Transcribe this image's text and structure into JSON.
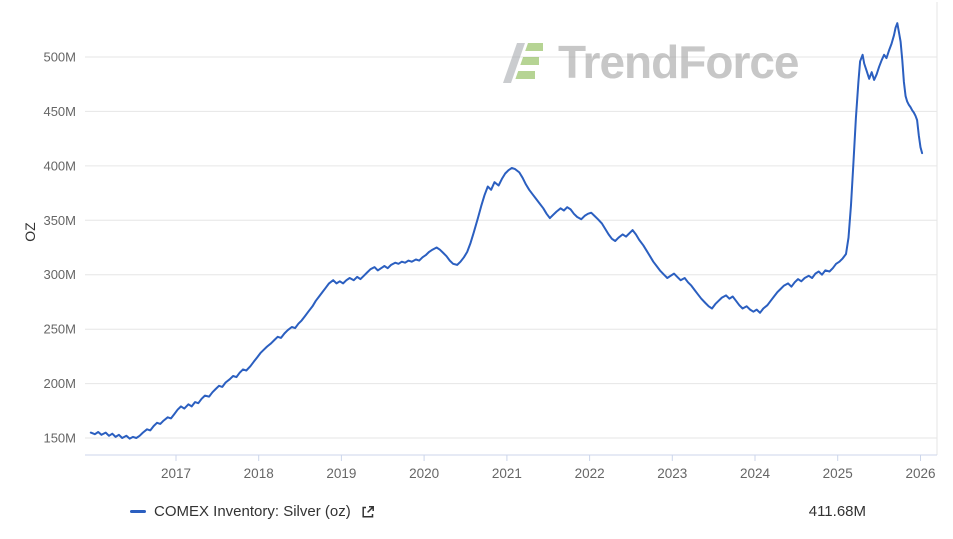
{
  "watermark": {
    "brand": "TrendForce"
  },
  "legend": {
    "label": "COMEX Inventory: Silver (oz)",
    "value": "411.68M"
  },
  "chart_data": {
    "type": "line",
    "title": "",
    "xlabel": "",
    "ylabel": "OZ",
    "grid": "horizontal",
    "legend_position": "bottom",
    "line_color": "#2b5fc0",
    "xlim": [
      2015.9,
      2026.2
    ],
    "ylim": [
      134.4,
      545
    ],
    "x_ticks": [
      {
        "value": 2017,
        "label": "2017"
      },
      {
        "value": 2018,
        "label": "2018"
      },
      {
        "value": 2019,
        "label": "2019"
      },
      {
        "value": 2020,
        "label": "2020"
      },
      {
        "value": 2021,
        "label": "2021"
      },
      {
        "value": 2022,
        "label": "2022"
      },
      {
        "value": 2023,
        "label": "2023"
      },
      {
        "value": 2024,
        "label": "2024"
      },
      {
        "value": 2025,
        "label": "2025"
      },
      {
        "value": 2026,
        "label": "2026"
      }
    ],
    "y_ticks": [
      {
        "value": 150,
        "label": "150M"
      },
      {
        "value": 200,
        "label": "200M"
      },
      {
        "value": 250,
        "label": "250M"
      },
      {
        "value": 300,
        "label": "300M"
      },
      {
        "value": 350,
        "label": "350M"
      },
      {
        "value": 400,
        "label": "400M"
      },
      {
        "value": 450,
        "label": "450M"
      },
      {
        "value": 500,
        "label": "500M"
      }
    ],
    "last_value_label": "411.68M",
    "series": [
      {
        "name": "COMEX Inventory: Silver (oz)",
        "color": "#2b5fc0",
        "points": [
          [
            2015.97,
            155
          ],
          [
            2016.02,
            153.5
          ],
          [
            2016.06,
            155.5
          ],
          [
            2016.1,
            153
          ],
          [
            2016.15,
            155
          ],
          [
            2016.19,
            152
          ],
          [
            2016.23,
            154
          ],
          [
            2016.27,
            151
          ],
          [
            2016.31,
            153
          ],
          [
            2016.35,
            150
          ],
          [
            2016.4,
            152
          ],
          [
            2016.44,
            149.5
          ],
          [
            2016.48,
            151
          ],
          [
            2016.52,
            150
          ],
          [
            2016.56,
            152
          ],
          [
            2016.6,
            155
          ],
          [
            2016.65,
            158
          ],
          [
            2016.69,
            157
          ],
          [
            2016.73,
            161
          ],
          [
            2016.77,
            164
          ],
          [
            2016.81,
            163
          ],
          [
            2016.85,
            166
          ],
          [
            2016.9,
            169
          ],
          [
            2016.94,
            168
          ],
          [
            2016.98,
            172
          ],
          [
            2017.02,
            176
          ],
          [
            2017.06,
            179
          ],
          [
            2017.1,
            177
          ],
          [
            2017.15,
            181
          ],
          [
            2017.19,
            179
          ],
          [
            2017.23,
            183
          ],
          [
            2017.27,
            182
          ],
          [
            2017.31,
            186
          ],
          [
            2017.35,
            189
          ],
          [
            2017.4,
            188
          ],
          [
            2017.44,
            192
          ],
          [
            2017.48,
            195
          ],
          [
            2017.52,
            198
          ],
          [
            2017.56,
            197
          ],
          [
            2017.6,
            201
          ],
          [
            2017.65,
            204
          ],
          [
            2017.69,
            207
          ],
          [
            2017.73,
            206
          ],
          [
            2017.77,
            210
          ],
          [
            2017.81,
            213
          ],
          [
            2017.85,
            212
          ],
          [
            2017.9,
            216
          ],
          [
            2017.94,
            220
          ],
          [
            2017.98,
            224
          ],
          [
            2018.02,
            228
          ],
          [
            2018.06,
            231
          ],
          [
            2018.1,
            234
          ],
          [
            2018.15,
            237
          ],
          [
            2018.19,
            240
          ],
          [
            2018.23,
            243
          ],
          [
            2018.27,
            242
          ],
          [
            2018.31,
            246
          ],
          [
            2018.35,
            249
          ],
          [
            2018.4,
            252
          ],
          [
            2018.44,
            251
          ],
          [
            2018.48,
            255
          ],
          [
            2018.52,
            258
          ],
          [
            2018.56,
            262
          ],
          [
            2018.6,
            266
          ],
          [
            2018.65,
            271
          ],
          [
            2018.69,
            276
          ],
          [
            2018.73,
            280
          ],
          [
            2018.77,
            284
          ],
          [
            2018.81,
            288
          ],
          [
            2018.85,
            292
          ],
          [
            2018.9,
            295
          ],
          [
            2018.94,
            292
          ],
          [
            2018.98,
            294
          ],
          [
            2019.02,
            292
          ],
          [
            2019.06,
            295
          ],
          [
            2019.1,
            297
          ],
          [
            2019.15,
            295
          ],
          [
            2019.19,
            298
          ],
          [
            2019.23,
            296
          ],
          [
            2019.27,
            299
          ],
          [
            2019.31,
            302
          ],
          [
            2019.35,
            305
          ],
          [
            2019.4,
            307
          ],
          [
            2019.44,
            304
          ],
          [
            2019.48,
            306
          ],
          [
            2019.52,
            308
          ],
          [
            2019.56,
            306
          ],
          [
            2019.6,
            309
          ],
          [
            2019.65,
            311
          ],
          [
            2019.69,
            310
          ],
          [
            2019.73,
            312
          ],
          [
            2019.77,
            311
          ],
          [
            2019.81,
            313
          ],
          [
            2019.85,
            312
          ],
          [
            2019.9,
            314
          ],
          [
            2019.94,
            313
          ],
          [
            2019.98,
            316
          ],
          [
            2020.02,
            318
          ],
          [
            2020.06,
            321
          ],
          [
            2020.1,
            323
          ],
          [
            2020.15,
            325
          ],
          [
            2020.19,
            323
          ],
          [
            2020.23,
            320
          ],
          [
            2020.27,
            317
          ],
          [
            2020.31,
            313
          ],
          [
            2020.35,
            310
          ],
          [
            2020.4,
            309
          ],
          [
            2020.44,
            312
          ],
          [
            2020.48,
            316
          ],
          [
            2020.52,
            321
          ],
          [
            2020.56,
            329
          ],
          [
            2020.6,
            339
          ],
          [
            2020.65,
            352
          ],
          [
            2020.69,
            363
          ],
          [
            2020.73,
            373
          ],
          [
            2020.77,
            381
          ],
          [
            2020.81,
            378
          ],
          [
            2020.85,
            385
          ],
          [
            2020.9,
            382
          ],
          [
            2020.94,
            388
          ],
          [
            2020.98,
            393
          ],
          [
            2021.02,
            396
          ],
          [
            2021.06,
            398
          ],
          [
            2021.1,
            397
          ],
          [
            2021.15,
            394
          ],
          [
            2021.19,
            389
          ],
          [
            2021.23,
            383
          ],
          [
            2021.27,
            378
          ],
          [
            2021.31,
            374
          ],
          [
            2021.35,
            370
          ],
          [
            2021.4,
            365
          ],
          [
            2021.44,
            361
          ],
          [
            2021.48,
            356
          ],
          [
            2021.52,
            352
          ],
          [
            2021.56,
            355
          ],
          [
            2021.6,
            358
          ],
          [
            2021.65,
            361
          ],
          [
            2021.69,
            359
          ],
          [
            2021.73,
            362
          ],
          [
            2021.77,
            360
          ],
          [
            2021.81,
            356
          ],
          [
            2021.85,
            353
          ],
          [
            2021.9,
            351
          ],
          [
            2021.94,
            354
          ],
          [
            2021.98,
            356
          ],
          [
            2022.02,
            357
          ],
          [
            2022.06,
            354
          ],
          [
            2022.1,
            351
          ],
          [
            2022.15,
            347
          ],
          [
            2022.19,
            342
          ],
          [
            2022.23,
            337
          ],
          [
            2022.27,
            333
          ],
          [
            2022.31,
            331
          ],
          [
            2022.35,
            334
          ],
          [
            2022.4,
            337
          ],
          [
            2022.44,
            335
          ],
          [
            2022.48,
            338
          ],
          [
            2022.52,
            341
          ],
          [
            2022.56,
            337
          ],
          [
            2022.6,
            332
          ],
          [
            2022.65,
            327
          ],
          [
            2022.69,
            322
          ],
          [
            2022.73,
            317
          ],
          [
            2022.77,
            312
          ],
          [
            2022.81,
            308
          ],
          [
            2022.85,
            304
          ],
          [
            2022.9,
            300
          ],
          [
            2022.94,
            297
          ],
          [
            2022.98,
            299
          ],
          [
            2023.02,
            301
          ],
          [
            2023.06,
            298
          ],
          [
            2023.1,
            295
          ],
          [
            2023.15,
            297
          ],
          [
            2023.19,
            293
          ],
          [
            2023.23,
            290
          ],
          [
            2023.27,
            286
          ],
          [
            2023.31,
            282
          ],
          [
            2023.35,
            278
          ],
          [
            2023.4,
            274
          ],
          [
            2023.44,
            271
          ],
          [
            2023.48,
            269
          ],
          [
            2023.52,
            273
          ],
          [
            2023.56,
            276
          ],
          [
            2023.6,
            279
          ],
          [
            2023.65,
            281
          ],
          [
            2023.69,
            278
          ],
          [
            2023.73,
            280
          ],
          [
            2023.77,
            276
          ],
          [
            2023.81,
            272
          ],
          [
            2023.85,
            269
          ],
          [
            2023.9,
            271
          ],
          [
            2023.94,
            268
          ],
          [
            2023.98,
            266
          ],
          [
            2024.02,
            268
          ],
          [
            2024.06,
            265
          ],
          [
            2024.1,
            269
          ],
          [
            2024.15,
            272
          ],
          [
            2024.19,
            276
          ],
          [
            2024.23,
            280
          ],
          [
            2024.27,
            284
          ],
          [
            2024.31,
            287
          ],
          [
            2024.35,
            290
          ],
          [
            2024.4,
            292
          ],
          [
            2024.44,
            289
          ],
          [
            2024.48,
            293
          ],
          [
            2024.52,
            296
          ],
          [
            2024.56,
            294
          ],
          [
            2024.6,
            297
          ],
          [
            2024.65,
            299
          ],
          [
            2024.69,
            297
          ],
          [
            2024.73,
            301
          ],
          [
            2024.77,
            303
          ],
          [
            2024.81,
            300
          ],
          [
            2024.85,
            304
          ],
          [
            2024.9,
            303
          ],
          [
            2024.94,
            306
          ],
          [
            2024.98,
            310
          ],
          [
            2025.02,
            312
          ],
          [
            2025.06,
            315
          ],
          [
            2025.1,
            319
          ],
          [
            2025.13,
            334
          ],
          [
            2025.16,
            364
          ],
          [
            2025.19,
            404
          ],
          [
            2025.22,
            444
          ],
          [
            2025.25,
            477
          ],
          [
            2025.27,
            496
          ],
          [
            2025.3,
            502
          ],
          [
            2025.32,
            494
          ],
          [
            2025.35,
            487
          ],
          [
            2025.38,
            480
          ],
          [
            2025.41,
            486
          ],
          [
            2025.44,
            479
          ],
          [
            2025.47,
            484
          ],
          [
            2025.5,
            491
          ],
          [
            2025.53,
            497
          ],
          [
            2025.56,
            502
          ],
          [
            2025.59,
            499
          ],
          [
            2025.62,
            506
          ],
          [
            2025.65,
            512
          ],
          [
            2025.68,
            520
          ],
          [
            2025.7,
            527
          ],
          [
            2025.72,
            531
          ],
          [
            2025.74,
            523
          ],
          [
            2025.76,
            514
          ],
          [
            2025.78,
            497
          ],
          [
            2025.8,
            477
          ],
          [
            2025.82,
            464
          ],
          [
            2025.84,
            459
          ],
          [
            2025.86,
            456
          ],
          [
            2025.88,
            454
          ],
          [
            2025.9,
            451
          ],
          [
            2025.92,
            449
          ],
          [
            2025.94,
            446
          ],
          [
            2025.96,
            442
          ],
          [
            2025.98,
            428
          ],
          [
            2026.0,
            417
          ],
          [
            2026.02,
            411.68
          ]
        ]
      }
    ]
  }
}
